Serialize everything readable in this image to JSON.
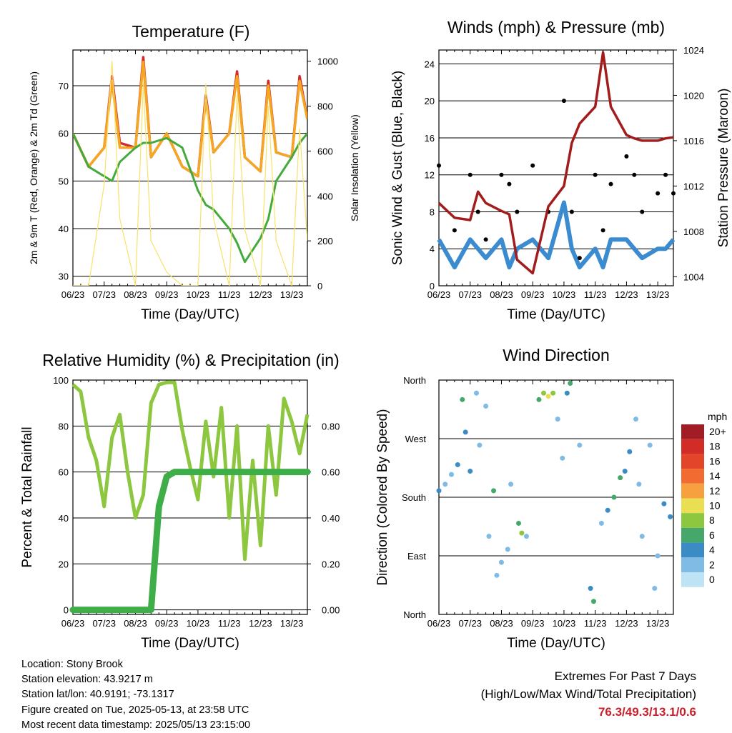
{
  "x_ticks": [
    "06/23",
    "07/23",
    "08/23",
    "09/23",
    "10/23",
    "11/23",
    "12/23",
    "13/23"
  ],
  "x_title": "Time (Day/UTC)",
  "info": {
    "location": "Location: Stony Brook",
    "elevation": "Station elevation: 43.9217 m",
    "latlon": "Station lat/lon: 40.9191; -73.1317",
    "created": "Figure created on Tue, 2025-05-13, at 23:58 UTC",
    "recent": "Most recent data timestamp: 2025/05/13 23:15:00"
  },
  "extremes": {
    "title": "Extremes For Past 7 Days",
    "subtitle": "(High/Low/Max Wind/Total Precipitation)",
    "values": "76.3/49.3/13.1/0.6"
  },
  "chart_data": [
    {
      "type": "line",
      "title": "Temperature (F)",
      "xlabel": "Time (Day/UTC)",
      "ylabel": "2m & 9m T (Red, Orange) & 2m Td (Green)",
      "ylabel_right": "Solar Insolation (Yellow)",
      "x": [
        6,
        6.5,
        7,
        7.25,
        7.5,
        8,
        8.25,
        8.5,
        9,
        9.5,
        10,
        10.25,
        10.5,
        11,
        11.25,
        11.5,
        12,
        12.25,
        12.5,
        13,
        13.25,
        13.5
      ],
      "ylim": [
        28,
        77.5
      ],
      "yticks": [
        30,
        40,
        50,
        60,
        70
      ],
      "ylim_right": [
        0,
        1050
      ],
      "yticks_right": [
        0,
        200,
        400,
        600,
        800,
        1000
      ],
      "series": [
        {
          "name": "2m T",
          "color": "#d42a2a",
          "values": [
            60,
            53,
            57,
            72,
            58,
            57,
            76,
            55,
            60,
            53,
            51,
            68,
            56,
            60,
            73,
            55,
            52,
            71,
            56,
            55,
            72,
            63
          ]
        },
        {
          "name": "9m T",
          "color": "#f5a623",
          "values": [
            60,
            53,
            57,
            71,
            57,
            57,
            75,
            55,
            60,
            53,
            51,
            67,
            56,
            60,
            72,
            55,
            52,
            70,
            56,
            55,
            71,
            63
          ]
        },
        {
          "name": "2m Td",
          "color": "#44aa3c",
          "values": [
            60,
            53,
            51,
            50,
            54,
            57,
            58,
            58,
            59,
            57,
            48,
            45,
            44,
            40,
            37,
            33,
            38,
            42,
            50,
            55,
            58,
            60
          ]
        },
        {
          "name": "Solar Insolation",
          "color": "#f7e26b",
          "values": [
            0,
            0,
            450,
            1000,
            300,
            0,
            900,
            200,
            60,
            0,
            0,
            900,
            300,
            0,
            850,
            250,
            0,
            800,
            200,
            0,
            700,
            200
          ]
        }
      ]
    },
    {
      "type": "line",
      "title": "Winds (mph) & Pressure (mb)",
      "xlabel": "Time (Day/UTC)",
      "ylabel": "Sonic Wind & Gust (Blue, Black)",
      "ylabel_right": "Station Pressure (Maroon)",
      "x": [
        6,
        6.5,
        7,
        7.25,
        7.5,
        8,
        8.25,
        8.5,
        9,
        9.5,
        10,
        10.25,
        10.5,
        11,
        11.25,
        11.5,
        12,
        12.25,
        12.5,
        13,
        13.25,
        13.5
      ],
      "ylim": [
        0,
        25.5
      ],
      "yticks": [
        0,
        4,
        8,
        12,
        16,
        20,
        24
      ],
      "ylim_right": [
        1003.2,
        1024
      ],
      "yticks_right": [
        1004,
        1008,
        1012,
        1016,
        1020,
        1024
      ],
      "series": [
        {
          "name": "Sonic Wind",
          "color": "#3b8bd0",
          "values": [
            5,
            2,
            5,
            4,
            3,
            5,
            2,
            4,
            5,
            3,
            9,
            4,
            2,
            4,
            2,
            5,
            5,
            4,
            3,
            4,
            4,
            5
          ]
        },
        {
          "name": "Gust",
          "color": "#000000",
          "values": [
            13,
            6,
            12,
            8,
            5,
            12,
            11,
            8,
            13,
            8,
            20,
            8,
            3,
            12,
            6,
            11,
            14,
            12,
            8,
            10,
            12,
            10
          ]
        },
        {
          "name": "Station Pressure",
          "color": "#a31c1c",
          "values": [
            1010.5,
            1009.2,
            1009.0,
            1011.5,
            1010.5,
            1009.8,
            1009.5,
            1005.5,
            1004.3,
            1010.2,
            1012.0,
            1015.8,
            1017.5,
            1019.0,
            1023.8,
            1019.0,
            1016.5,
            1016.2,
            1016.0,
            1016.0,
            1016.2,
            1016.3
          ]
        }
      ]
    },
    {
      "type": "line",
      "title": "Relative Humidity (%) & Precipitation (in)",
      "xlabel": "Time (Day/UTC)",
      "ylabel": "Percent & Total Rainfall",
      "x": [
        6,
        6.25,
        6.5,
        6.75,
        7,
        7.25,
        7.5,
        7.75,
        8,
        8.25,
        8.5,
        8.75,
        9,
        9.25,
        9.5,
        9.75,
        10,
        10.25,
        10.5,
        10.75,
        11,
        11.25,
        11.5,
        11.75,
        12,
        12.25,
        12.5,
        12.75,
        13,
        13.25,
        13.5
      ],
      "ylim": [
        -2,
        100
      ],
      "yticks": [
        0,
        20,
        40,
        60,
        80,
        100
      ],
      "yticks_right": [
        "0.00",
        "0.20",
        "0.40",
        "0.60",
        "0.80"
      ],
      "series": [
        {
          "name": "Relative Humidity",
          "color": "#8dc63f",
          "values": [
            98,
            95,
            75,
            65,
            45,
            75,
            85,
            60,
            40,
            50,
            90,
            98,
            99,
            99,
            78,
            62,
            48,
            82,
            58,
            88,
            40,
            80,
            22,
            65,
            28,
            80,
            50,
            92,
            82,
            68,
            85
          ]
        },
        {
          "name": "Total Precipitation",
          "color": "#3fae49",
          "unit": "in",
          "values": [
            0,
            0,
            0,
            0,
            0,
            0,
            0,
            0,
            0,
            0,
            0,
            0.45,
            0.58,
            0.6,
            0.6,
            0.6,
            0.6,
            0.6,
            0.6,
            0.6,
            0.6,
            0.6,
            0.6,
            0.6,
            0.6,
            0.6,
            0.6,
            0.6,
            0.6,
            0.6,
            0.6
          ]
        }
      ]
    },
    {
      "type": "scatter",
      "title": "Wind Direction",
      "xlabel": "Time (Day/UTC)",
      "ylabel": "Direction (Colored By Speed)",
      "yticks": [
        "North",
        "East",
        "South",
        "West",
        "North"
      ],
      "color_legend_title": "mph",
      "color_legend": [
        {
          "label": "20+",
          "color": "#a11c24"
        },
        {
          "label": "18",
          "color": "#d12c26"
        },
        {
          "label": "16",
          "color": "#e3452b"
        },
        {
          "label": "14",
          "color": "#f26b30"
        },
        {
          "label": "12",
          "color": "#f7a040"
        },
        {
          "label": "10",
          "color": "#eadf53"
        },
        {
          "label": "8",
          "color": "#8dc63f"
        },
        {
          "label": "6",
          "color": "#45a86a"
        },
        {
          "label": "4",
          "color": "#3b8bc5"
        },
        {
          "label": "2",
          "color": "#7fbbe5"
        },
        {
          "label": "0",
          "color": "#bde3f5"
        }
      ],
      "points": [
        {
          "x": 6.0,
          "dir": 190,
          "speed": 4
        },
        {
          "x": 6.2,
          "dir": 200,
          "speed": 3
        },
        {
          "x": 6.4,
          "dir": 215,
          "speed": 3
        },
        {
          "x": 6.6,
          "dir": 230,
          "speed": 4
        },
        {
          "x": 6.75,
          "dir": 330,
          "speed": 6
        },
        {
          "x": 6.85,
          "dir": 280,
          "speed": 5
        },
        {
          "x": 7.0,
          "dir": 220,
          "speed": 4
        },
        {
          "x": 7.2,
          "dir": 340,
          "speed": 2
        },
        {
          "x": 7.3,
          "dir": 260,
          "speed": 2
        },
        {
          "x": 7.5,
          "dir": 320,
          "speed": 3
        },
        {
          "x": 7.6,
          "dir": 120,
          "speed": 3
        },
        {
          "x": 7.75,
          "dir": 190,
          "speed": 6
        },
        {
          "x": 7.85,
          "dir": 60,
          "speed": 2
        },
        {
          "x": 8.0,
          "dir": 80,
          "speed": 3
        },
        {
          "x": 8.2,
          "dir": 100,
          "speed": 3
        },
        {
          "x": 8.3,
          "dir": 200,
          "speed": 2
        },
        {
          "x": 8.55,
          "dir": 140,
          "speed": 7
        },
        {
          "x": 8.65,
          "dir": 125,
          "speed": 9
        },
        {
          "x": 8.8,
          "dir": 120,
          "speed": 3
        },
        {
          "x": 9.2,
          "dir": 330,
          "speed": 7
        },
        {
          "x": 9.35,
          "dir": 340,
          "speed": 9
        },
        {
          "x": 9.5,
          "dir": 335,
          "speed": 11
        },
        {
          "x": 9.65,
          "dir": 340,
          "speed": 8
        },
        {
          "x": 9.8,
          "dir": 300,
          "speed": 2
        },
        {
          "x": 9.95,
          "dir": 240,
          "speed": 3
        },
        {
          "x": 10.1,
          "dir": 340,
          "speed": 5
        },
        {
          "x": 10.2,
          "dir": 355,
          "speed": 6
        },
        {
          "x": 10.5,
          "dir": 260,
          "speed": 2
        },
        {
          "x": 10.85,
          "dir": 40,
          "speed": 5
        },
        {
          "x": 10.95,
          "dir": 20,
          "speed": 6
        },
        {
          "x": 11.2,
          "dir": 140,
          "speed": 2
        },
        {
          "x": 11.4,
          "dir": 160,
          "speed": 4
        },
        {
          "x": 11.6,
          "dir": 180,
          "speed": 7
        },
        {
          "x": 11.8,
          "dir": 210,
          "speed": 6
        },
        {
          "x": 11.95,
          "dir": 220,
          "speed": 5
        },
        {
          "x": 12.1,
          "dir": 250,
          "speed": 4
        },
        {
          "x": 12.3,
          "dir": 300,
          "speed": 3
        },
        {
          "x": 12.4,
          "dir": 200,
          "speed": 2
        },
        {
          "x": 12.5,
          "dir": 120,
          "speed": 2
        },
        {
          "x": 12.75,
          "dir": 260,
          "speed": 3
        },
        {
          "x": 12.9,
          "dir": 40,
          "speed": 3
        },
        {
          "x": 13.0,
          "dir": 90,
          "speed": 3
        },
        {
          "x": 13.2,
          "dir": 170,
          "speed": 5
        },
        {
          "x": 13.4,
          "dir": 150,
          "speed": 4
        }
      ]
    }
  ]
}
